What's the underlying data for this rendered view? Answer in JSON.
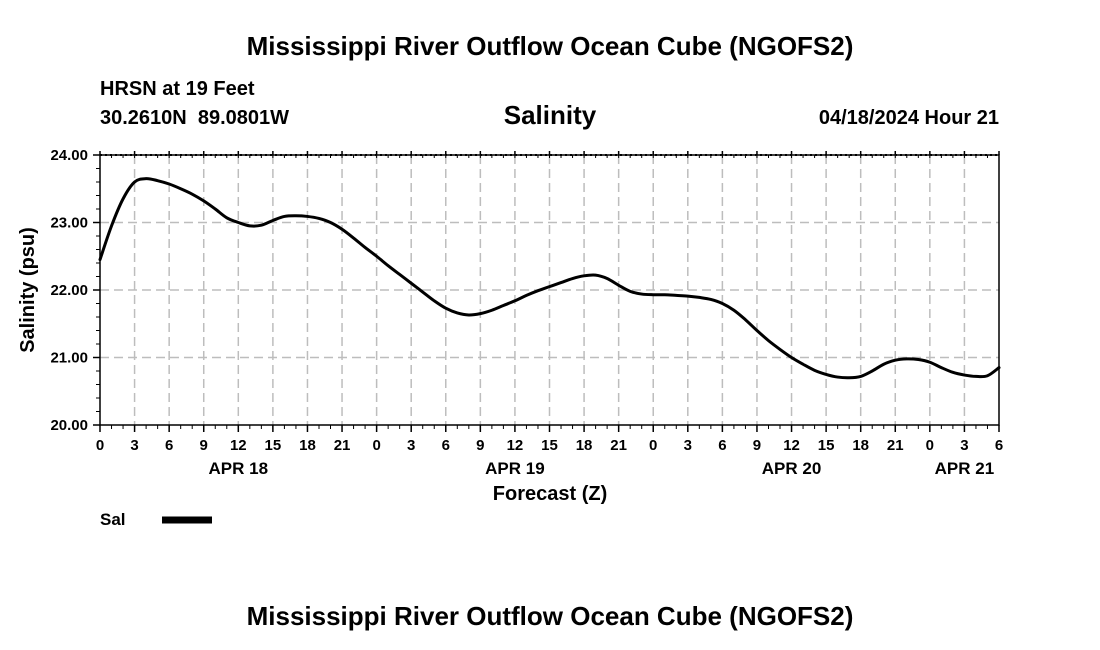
{
  "header": {
    "title": "Mississippi River Outflow Ocean Cube (NGOFS2)",
    "station": "HRSN at 19 Feet",
    "coords": "30.2610N  89.0801W",
    "variable": "Salinity",
    "datetime": "04/18/2024 Hour 21"
  },
  "footer": {
    "title": "Mississippi River Outflow Ocean Cube (NGOFS2)"
  },
  "chart_data": {
    "type": "line",
    "title": "Salinity",
    "xlabel": "Forecast (Z)",
    "ylabel": "Salinity (psu)",
    "ylim": [
      20.0,
      24.0
    ],
    "xlim": [
      0,
      78
    ],
    "x_ticks": [
      0,
      3,
      6,
      9,
      12,
      15,
      18,
      21,
      24,
      27,
      30,
      33,
      36,
      39,
      42,
      45,
      48,
      51,
      54,
      57,
      60,
      63,
      66,
      69,
      72,
      75,
      78
    ],
    "x_tick_labels": [
      "0",
      "3",
      "6",
      "9",
      "12",
      "15",
      "18",
      "21",
      "0",
      "3",
      "6",
      "9",
      "12",
      "15",
      "18",
      "21",
      "0",
      "3",
      "6",
      "9",
      "12",
      "15",
      "18",
      "21",
      "0",
      "3",
      "6"
    ],
    "y_ticks": [
      20.0,
      21.0,
      22.0,
      23.0,
      24.0
    ],
    "y_tick_labels": [
      "20.00",
      "21.00",
      "22.00",
      "23.00",
      "24.00"
    ],
    "day_labels": [
      {
        "x": 12,
        "label": "APR 18"
      },
      {
        "x": 36,
        "label": "APR 19"
      },
      {
        "x": 60,
        "label": "APR 20"
      },
      {
        "x": 75,
        "label": "APR 21"
      }
    ],
    "grid": true,
    "legend": {
      "position": "bottom-left",
      "label": "Sal"
    },
    "series": [
      {
        "name": "Sal",
        "x": [
          0,
          1,
          2,
          3,
          4,
          5,
          6,
          7,
          8,
          9,
          10,
          11,
          12,
          13,
          14,
          15,
          16,
          17,
          18,
          19,
          20,
          21,
          22,
          23,
          24,
          25,
          26,
          27,
          28,
          29,
          30,
          31,
          32,
          33,
          34,
          35,
          36,
          37,
          38,
          39,
          40,
          41,
          42,
          43,
          44,
          45,
          46,
          47,
          48,
          49,
          50,
          51,
          52,
          53,
          54,
          55,
          56,
          57,
          58,
          59,
          60,
          61,
          62,
          63,
          64,
          65,
          66,
          67,
          68,
          69,
          70,
          71,
          72,
          73,
          74,
          75,
          76,
          77,
          78
        ],
        "values": [
          22.45,
          22.95,
          23.35,
          23.6,
          23.65,
          23.62,
          23.57,
          23.5,
          23.42,
          23.32,
          23.2,
          23.07,
          23.0,
          22.95,
          22.96,
          23.03,
          23.09,
          23.1,
          23.09,
          23.06,
          23.0,
          22.9,
          22.77,
          22.63,
          22.5,
          22.36,
          22.23,
          22.1,
          21.97,
          21.84,
          21.73,
          21.66,
          21.63,
          21.65,
          21.7,
          21.77,
          21.84,
          21.92,
          21.99,
          22.05,
          22.11,
          22.17,
          22.21,
          22.22,
          22.17,
          22.07,
          21.98,
          21.94,
          21.93,
          21.93,
          21.92,
          21.91,
          21.89,
          21.86,
          21.8,
          21.7,
          21.56,
          21.4,
          21.25,
          21.12,
          21.0,
          20.9,
          20.81,
          20.75,
          20.71,
          20.7,
          20.72,
          20.8,
          20.9,
          20.96,
          20.98,
          20.97,
          20.93,
          20.85,
          20.78,
          20.74,
          20.72,
          20.73,
          20.85
        ]
      }
    ]
  }
}
